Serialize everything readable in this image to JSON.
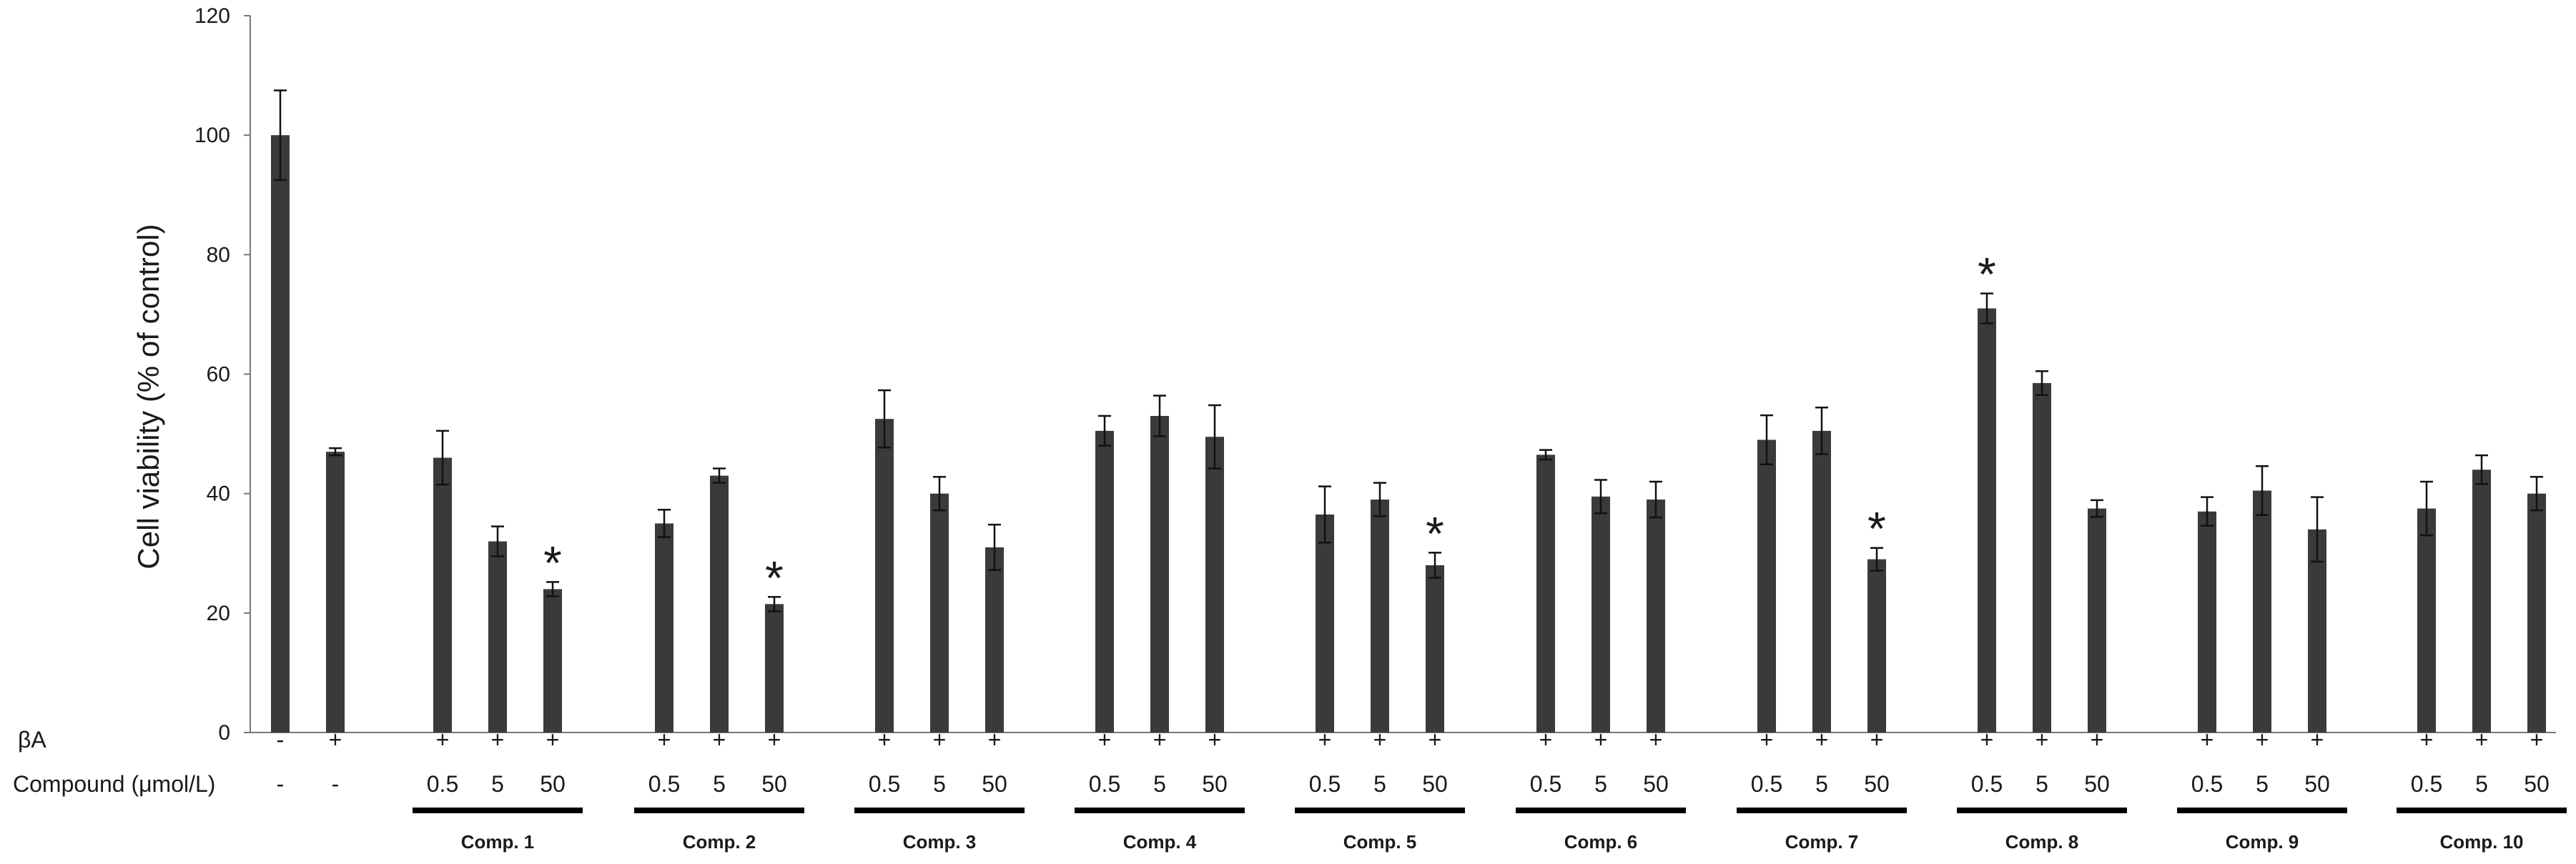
{
  "chart_data": {
    "type": "bar",
    "title": "",
    "xlabel": "",
    "ylabel": "Cell viability (% of control)",
    "ylim": [
      0,
      120
    ],
    "yticks": [
      "0",
      "20",
      "40",
      "60",
      "80",
      "100",
      "120"
    ],
    "grid": false,
    "legend": "none",
    "bar_color": "#3a3a3a",
    "treatment_rows": {
      "beta_a_label": "βA",
      "compound_label": "Compound (μmol/L)"
    },
    "groups": [
      {
        "label": "",
        "bars": [
          {
            "beta_a": "-",
            "dose": "-",
            "value": 100,
            "error": 7.5
          },
          {
            "beta_a": "+",
            "dose": "-",
            "value": 47,
            "error": 0.6
          }
        ]
      },
      {
        "label": "Comp. 1",
        "bars": [
          {
            "beta_a": "+",
            "dose": "0.5",
            "value": 46,
            "error": 4.5
          },
          {
            "beta_a": "+",
            "dose": "5",
            "value": 32,
            "error": 2.5
          },
          {
            "beta_a": "+",
            "dose": "50",
            "value": 24,
            "error": 1.2,
            "sig": "*"
          }
        ]
      },
      {
        "label": "Comp. 2",
        "bars": [
          {
            "beta_a": "+",
            "dose": "0.5",
            "value": 35,
            "error": 2.3
          },
          {
            "beta_a": "+",
            "dose": "5",
            "value": 43,
            "error": 1.2
          },
          {
            "beta_a": "+",
            "dose": "50",
            "value": 21.5,
            "error": 1.2,
            "sig": "*"
          }
        ]
      },
      {
        "label": "Comp. 3",
        "bars": [
          {
            "beta_a": "+",
            "dose": "0.5",
            "value": 52.5,
            "error": 4.8
          },
          {
            "beta_a": "+",
            "dose": "5",
            "value": 40,
            "error": 2.8
          },
          {
            "beta_a": "+",
            "dose": "50",
            "value": 31,
            "error": 3.8
          }
        ]
      },
      {
        "label": "Comp. 4",
        "bars": [
          {
            "beta_a": "+",
            "dose": "0.5",
            "value": 50.5,
            "error": 2.5
          },
          {
            "beta_a": "+",
            "dose": "5",
            "value": 53,
            "error": 3.4
          },
          {
            "beta_a": "+",
            "dose": "50",
            "value": 49.5,
            "error": 5.3
          }
        ]
      },
      {
        "label": "Comp. 5",
        "bars": [
          {
            "beta_a": "+",
            "dose": "0.5",
            "value": 36.5,
            "error": 4.7
          },
          {
            "beta_a": "+",
            "dose": "5",
            "value": 39,
            "error": 2.8
          },
          {
            "beta_a": "+",
            "dose": "50",
            "value": 28,
            "error": 2.1,
            "sig": "*"
          }
        ]
      },
      {
        "label": "Comp. 6",
        "bars": [
          {
            "beta_a": "+",
            "dose": "0.5",
            "value": 46.5,
            "error": 0.8
          },
          {
            "beta_a": "+",
            "dose": "5",
            "value": 39.5,
            "error": 2.8
          },
          {
            "beta_a": "+",
            "dose": "50",
            "value": 39,
            "error": 3
          }
        ]
      },
      {
        "label": "Comp. 7",
        "bars": [
          {
            "beta_a": "+",
            "dose": "0.5",
            "value": 49,
            "error": 4.1
          },
          {
            "beta_a": "+",
            "dose": "5",
            "value": 50.5,
            "error": 3.9
          },
          {
            "beta_a": "+",
            "dose": "50",
            "value": 29,
            "error": 1.9,
            "sig": "*"
          }
        ]
      },
      {
        "label": "Comp. 8",
        "bars": [
          {
            "beta_a": "+",
            "dose": "0.5",
            "value": 71,
            "error": 2.5,
            "sig": "*"
          },
          {
            "beta_a": "+",
            "dose": "5",
            "value": 58.5,
            "error": 2
          },
          {
            "beta_a": "+",
            "dose": "50",
            "value": 37.5,
            "error": 1.4
          }
        ]
      },
      {
        "label": "Comp. 9",
        "bars": [
          {
            "beta_a": "+",
            "dose": "0.5",
            "value": 37,
            "error": 2.4
          },
          {
            "beta_a": "+",
            "dose": "5",
            "value": 40.5,
            "error": 4.1
          },
          {
            "beta_a": "+",
            "dose": "50",
            "value": 34,
            "error": 5.4
          }
        ]
      },
      {
        "label": "Comp. 10",
        "bars": [
          {
            "beta_a": "+",
            "dose": "0.5",
            "value": 37.5,
            "error": 4.5
          },
          {
            "beta_a": "+",
            "dose": "5",
            "value": 44,
            "error": 2.4
          },
          {
            "beta_a": "+",
            "dose": "50",
            "value": 40,
            "error": 2.8
          }
        ]
      }
    ]
  }
}
